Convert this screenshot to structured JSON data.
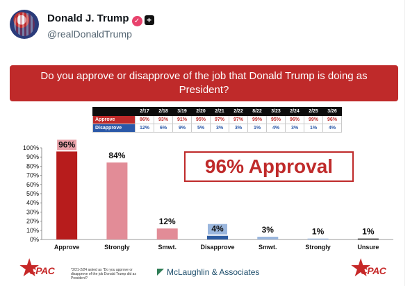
{
  "post": {
    "display_name": "Donald J. Trump",
    "handle": "@realDonaldTrump"
  },
  "slide": {
    "question": "Do you approve or disapprove of the job that Donald Trump is doing as President?",
    "highlight": "96% Approval",
    "footnote": "*2/21-2/24 asked as \"Do you approve or disapprove of the job Donald Trump did as President?",
    "pollster": "McLaughlin & Associates",
    "logo_text": "CPAC",
    "table": {
      "dates": [
        "2/17",
        "2/18",
        "3/19",
        "2/20",
        "2/21",
        "2/22",
        "8/22",
        "3/23",
        "2/24",
        "2/25",
        "3/26"
      ],
      "rows": [
        {
          "label": "Approve",
          "values": [
            "86%",
            "93%",
            "91%",
            "95%",
            "97%",
            "97%",
            "99%",
            "95%",
            "96%",
            "99%",
            "96%"
          ]
        },
        {
          "label": "Disapprove",
          "values": [
            "12%",
            "6%",
            "9%",
            "5%",
            "3%",
            "3%",
            "1%",
            "4%",
            "3%",
            "1%",
            "4%"
          ]
        }
      ]
    }
  },
  "chart_data": {
    "type": "bar",
    "categories": [
      "Approve",
      "Strongly",
      "Smwt.",
      "Disapprove",
      "Smwt.",
      "Strongly",
      "Unsure"
    ],
    "values": [
      96,
      84,
      12,
      4,
      3,
      1,
      1
    ],
    "labels": [
      "96%",
      "84%",
      "12%",
      "4%",
      "3%",
      "1%",
      "1%"
    ],
    "bar_colors": [
      "#b71c1c",
      "#e28c97",
      "#e28c97",
      "#2c5aa0",
      "#9ab6dd",
      "#9ab6dd",
      "#1a1a1a"
    ],
    "label_bg": [
      "#e8a0a8",
      null,
      null,
      "#9ab6dd",
      null,
      null,
      null
    ],
    "yticks": [
      "0%",
      "10%",
      "20%",
      "30%",
      "40%",
      "50%",
      "60%",
      "70%",
      "80%",
      "90%",
      "100%"
    ],
    "ylim": [
      0,
      100
    ]
  }
}
